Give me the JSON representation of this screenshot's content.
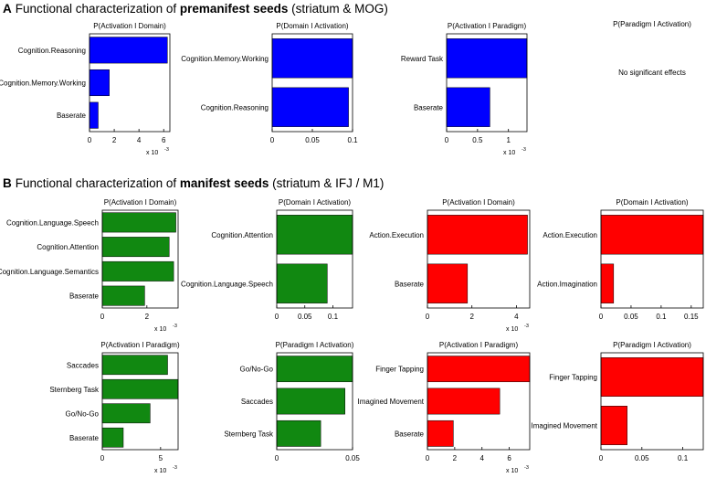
{
  "sections": {
    "A": {
      "letter": "A",
      "prefix": "Functional characterization of ",
      "bold": "premanifest seeds",
      "suffix": " (striatum & MOG)"
    },
    "B": {
      "letter": "B",
      "prefix": "Functional characterization of ",
      "bold": "manifest seeds",
      "suffix": " (striatum & IFJ / M1)"
    }
  },
  "empty_panel": {
    "title": "P(Paradigm I Activation)",
    "message": "No significant effects"
  },
  "colors": {
    "blue": "#0000ff",
    "green": "#118811",
    "red": "#ff0000"
  },
  "chart_data": [
    {
      "id": "a1",
      "type": "bar",
      "orientation": "horizontal",
      "title": "P(Activation I Domain)",
      "color": "blue",
      "categories": [
        "Cognition.Reasoning",
        "Cognition.Memory.Working",
        "Baserate"
      ],
      "values": [
        6.3,
        1.6,
        0.7
      ],
      "xlim": [
        0,
        6.5
      ],
      "ticks": [
        0,
        2,
        4,
        6
      ],
      "tick_labels": [
        "0",
        "2",
        "4",
        "6"
      ],
      "exponent": "x 10",
      "exponent_power": "-3"
    },
    {
      "id": "a2",
      "type": "bar",
      "orientation": "horizontal",
      "title": "P(Domain I Activation)",
      "color": "blue",
      "categories": [
        "Cognition.Memory.Working",
        "Cognition.Reasoning"
      ],
      "values": [
        0.1,
        0.095
      ],
      "xlim": [
        0,
        0.1
      ],
      "ticks": [
        0,
        0.05,
        0.1
      ],
      "tick_labels": [
        "0",
        "0.05",
        "0.1"
      ],
      "exponent": "",
      "exponent_power": ""
    },
    {
      "id": "a3",
      "type": "bar",
      "orientation": "horizontal",
      "title": "P(Activation I Paradigm)",
      "color": "blue",
      "categories": [
        "Reward Task",
        "Baserate"
      ],
      "values": [
        1.3,
        0.7
      ],
      "xlim": [
        0,
        1.3
      ],
      "ticks": [
        0,
        0.5,
        1
      ],
      "tick_labels": [
        "0",
        "0.5",
        "1"
      ],
      "exponent": "x 10",
      "exponent_power": "-3"
    },
    {
      "id": "b1",
      "type": "bar",
      "orientation": "horizontal",
      "title": "P(Activation I Domain)",
      "color": "green",
      "categories": [
        "Cognition.Language.Speech",
        "Cognition.Attention",
        "Cognition.Language.Semantics",
        "Baserate"
      ],
      "values": [
        3.3,
        3.0,
        3.2,
        1.9
      ],
      "xlim": [
        0,
        3.4
      ],
      "ticks": [
        0,
        2
      ],
      "tick_labels": [
        "0",
        "2"
      ],
      "exponent": "x 10",
      "exponent_power": "-3"
    },
    {
      "id": "b2",
      "type": "bar",
      "orientation": "horizontal",
      "title": "P(Domain I Activation)",
      "color": "green",
      "categories": [
        "Cognition.Attention",
        "Cognition.Language.Speech"
      ],
      "values": [
        0.135,
        0.09
      ],
      "xlim": [
        0,
        0.135
      ],
      "ticks": [
        0,
        0.05,
        0.1
      ],
      "tick_labels": [
        "0",
        "0.05",
        "0.1"
      ],
      "exponent": "",
      "exponent_power": ""
    },
    {
      "id": "b3",
      "type": "bar",
      "orientation": "horizontal",
      "title": "P(Activation I Domain)",
      "color": "red",
      "categories": [
        "Action.Execution",
        "Baserate"
      ],
      "values": [
        4.5,
        1.8
      ],
      "xlim": [
        0,
        4.6
      ],
      "ticks": [
        0,
        2,
        4
      ],
      "tick_labels": [
        "0",
        "2",
        "4"
      ],
      "exponent": "x 10",
      "exponent_power": "-3"
    },
    {
      "id": "b4",
      "type": "bar",
      "orientation": "horizontal",
      "title": "P(Domain I Activation)",
      "color": "red",
      "categories": [
        "Action.Execution",
        "Action.Imagination"
      ],
      "values": [
        0.17,
        0.021
      ],
      "xlim": [
        0,
        0.17
      ],
      "ticks": [
        0,
        0.05,
        0.1,
        0.15
      ],
      "tick_labels": [
        "0",
        "0.05",
        "0.1",
        "0.15"
      ],
      "exponent": "",
      "exponent_power": ""
    },
    {
      "id": "b5",
      "type": "bar",
      "orientation": "horizontal",
      "title": "P(Activation I Paradigm)",
      "color": "green",
      "categories": [
        "Saccades",
        "Sternberg Task",
        "Go/No-Go",
        "Baserate"
      ],
      "values": [
        5.6,
        6.5,
        4.1,
        1.8
      ],
      "xlim": [
        0,
        6.5
      ],
      "ticks": [
        0,
        5
      ],
      "tick_labels": [
        "0",
        "5"
      ],
      "exponent": "x 10",
      "exponent_power": "-3"
    },
    {
      "id": "b6",
      "type": "bar",
      "orientation": "horizontal",
      "title": "P(Paradigm I Activation)",
      "color": "green",
      "categories": [
        "Go/No-Go",
        "Saccades",
        "Sternberg Task"
      ],
      "values": [
        0.05,
        0.045,
        0.029
      ],
      "xlim": [
        0,
        0.05
      ],
      "ticks": [
        0,
        0.05
      ],
      "tick_labels": [
        "0",
        "0.05"
      ],
      "exponent": "",
      "exponent_power": ""
    },
    {
      "id": "b7",
      "type": "bar",
      "orientation": "horizontal",
      "title": "P(Activation I Paradigm)",
      "color": "red",
      "categories": [
        "Finger Tapping",
        "Imagined Movement",
        "Baserate"
      ],
      "values": [
        7.5,
        5.3,
        1.9
      ],
      "xlim": [
        0,
        7.5
      ],
      "ticks": [
        0,
        2,
        4,
        6
      ],
      "tick_labels": [
        "0",
        "2",
        "4",
        "6"
      ],
      "exponent": "x 10",
      "exponent_power": "-3"
    },
    {
      "id": "b8",
      "type": "bar",
      "orientation": "horizontal",
      "title": "P(Paradigm I Activation)",
      "color": "red",
      "categories": [
        "Finger Tapping",
        "Imagined Movement"
      ],
      "values": [
        0.125,
        0.032
      ],
      "xlim": [
        0,
        0.125
      ],
      "ticks": [
        0,
        0.05,
        0.1
      ],
      "tick_labels": [
        "0",
        "0.05",
        "0.1"
      ],
      "exponent": "",
      "exponent_power": ""
    }
  ]
}
